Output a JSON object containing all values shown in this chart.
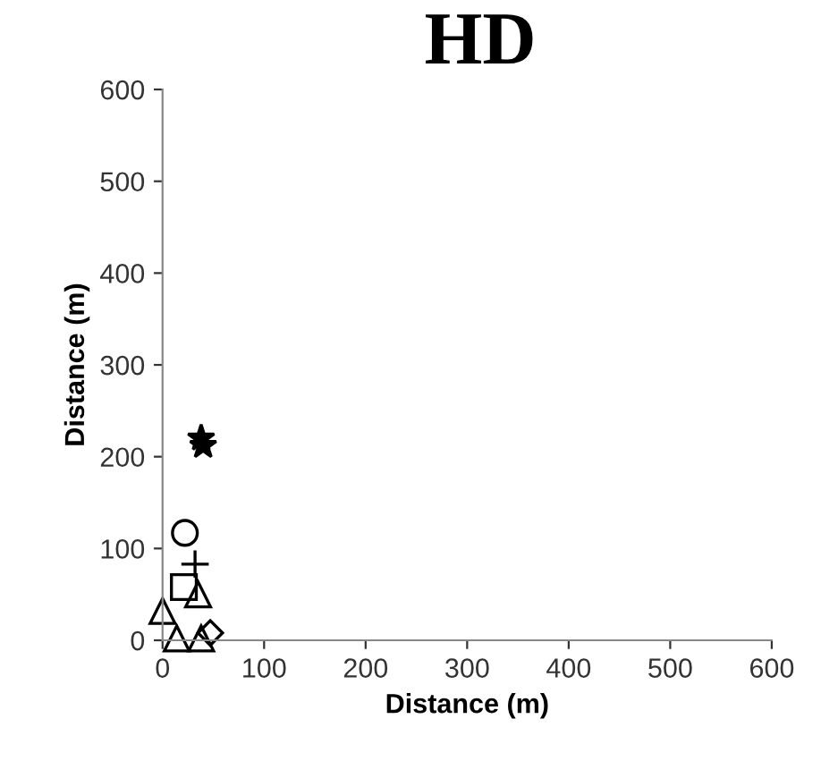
{
  "chart_data": {
    "type": "scatter",
    "title": "HD",
    "xlabel": "Distance (m)",
    "ylabel": "Distance (m)",
    "xlim": [
      0,
      600
    ],
    "ylim": [
      0,
      600
    ],
    "xticks": [
      0,
      100,
      200,
      300,
      400,
      500,
      600
    ],
    "yticks": [
      0,
      100,
      200,
      300,
      400,
      500,
      600
    ],
    "grid": false,
    "legend": false,
    "series": [
      {
        "marker": "star",
        "color": "#000000",
        "x": [
          38,
          40
        ],
        "values": [
          220,
          212
        ]
      },
      {
        "marker": "circle",
        "color": "#000000",
        "x": [
          22
        ],
        "values": [
          117
        ]
      },
      {
        "marker": "cross",
        "color": "#000000",
        "x": [
          32
        ],
        "values": [
          83
        ]
      },
      {
        "marker": "square",
        "color": "#000000",
        "x": [
          21
        ],
        "values": [
          58
        ]
      },
      {
        "marker": "triangle",
        "color": "#000000",
        "x": [
          35,
          0,
          14,
          38
        ],
        "values": [
          50,
          32,
          2,
          2
        ]
      },
      {
        "marker": "diamond",
        "color": "#000000",
        "x": [
          47
        ],
        "values": [
          8
        ]
      }
    ]
  }
}
